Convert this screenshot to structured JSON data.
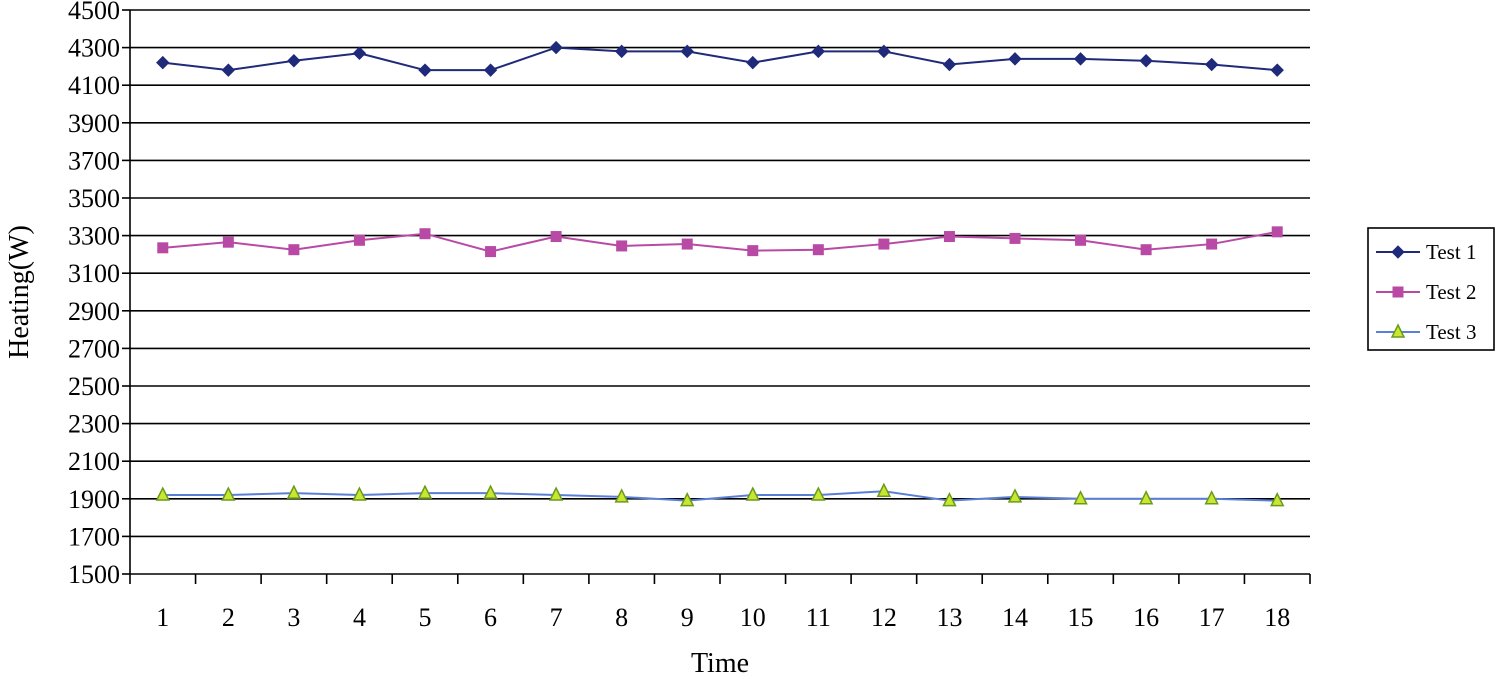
{
  "chart_data": {
    "type": "line",
    "title": "",
    "xlabel": "Time",
    "ylabel": "Heating(W)",
    "categories": [
      "1",
      "2",
      "3",
      "4",
      "5",
      "6",
      "7",
      "8",
      "9",
      "10",
      "11",
      "12",
      "13",
      "14",
      "15",
      "16",
      "17",
      "18"
    ],
    "ylim": [
      1500,
      4500
    ],
    "yticks": [
      "1500",
      "1700",
      "1900",
      "2100",
      "2300",
      "2500",
      "2700",
      "2900",
      "3100",
      "3300",
      "3500",
      "3700",
      "3900",
      "4100",
      "4300",
      "4500"
    ],
    "grid": true,
    "legend_position": "right",
    "series": [
      {
        "name": "Test 1",
        "color": "#1f2a7a",
        "marker": "diamond",
        "values": [
          4220,
          4180,
          4230,
          4270,
          4180,
          4180,
          4300,
          4280,
          4280,
          4220,
          4280,
          4280,
          4210,
          4240,
          4240,
          4230,
          4210,
          4180
        ]
      },
      {
        "name": "Test 2",
        "color": "#b84aa6",
        "marker": "square",
        "values": [
          3235,
          3265,
          3225,
          3275,
          3310,
          3215,
          3295,
          3245,
          3255,
          3220,
          3225,
          3255,
          3295,
          3285,
          3275,
          3225,
          3255,
          3320
        ]
      },
      {
        "name": "Test 3",
        "color": "#5a7fd6",
        "marker": "triangle",
        "marker_fill": "#c8e632",
        "marker_stroke": "#6a9a1a",
        "values": [
          1920,
          1920,
          1930,
          1920,
          1930,
          1930,
          1920,
          1910,
          1890,
          1920,
          1920,
          1940,
          1890,
          1910,
          1900,
          1900,
          1900,
          1890
        ]
      }
    ]
  }
}
